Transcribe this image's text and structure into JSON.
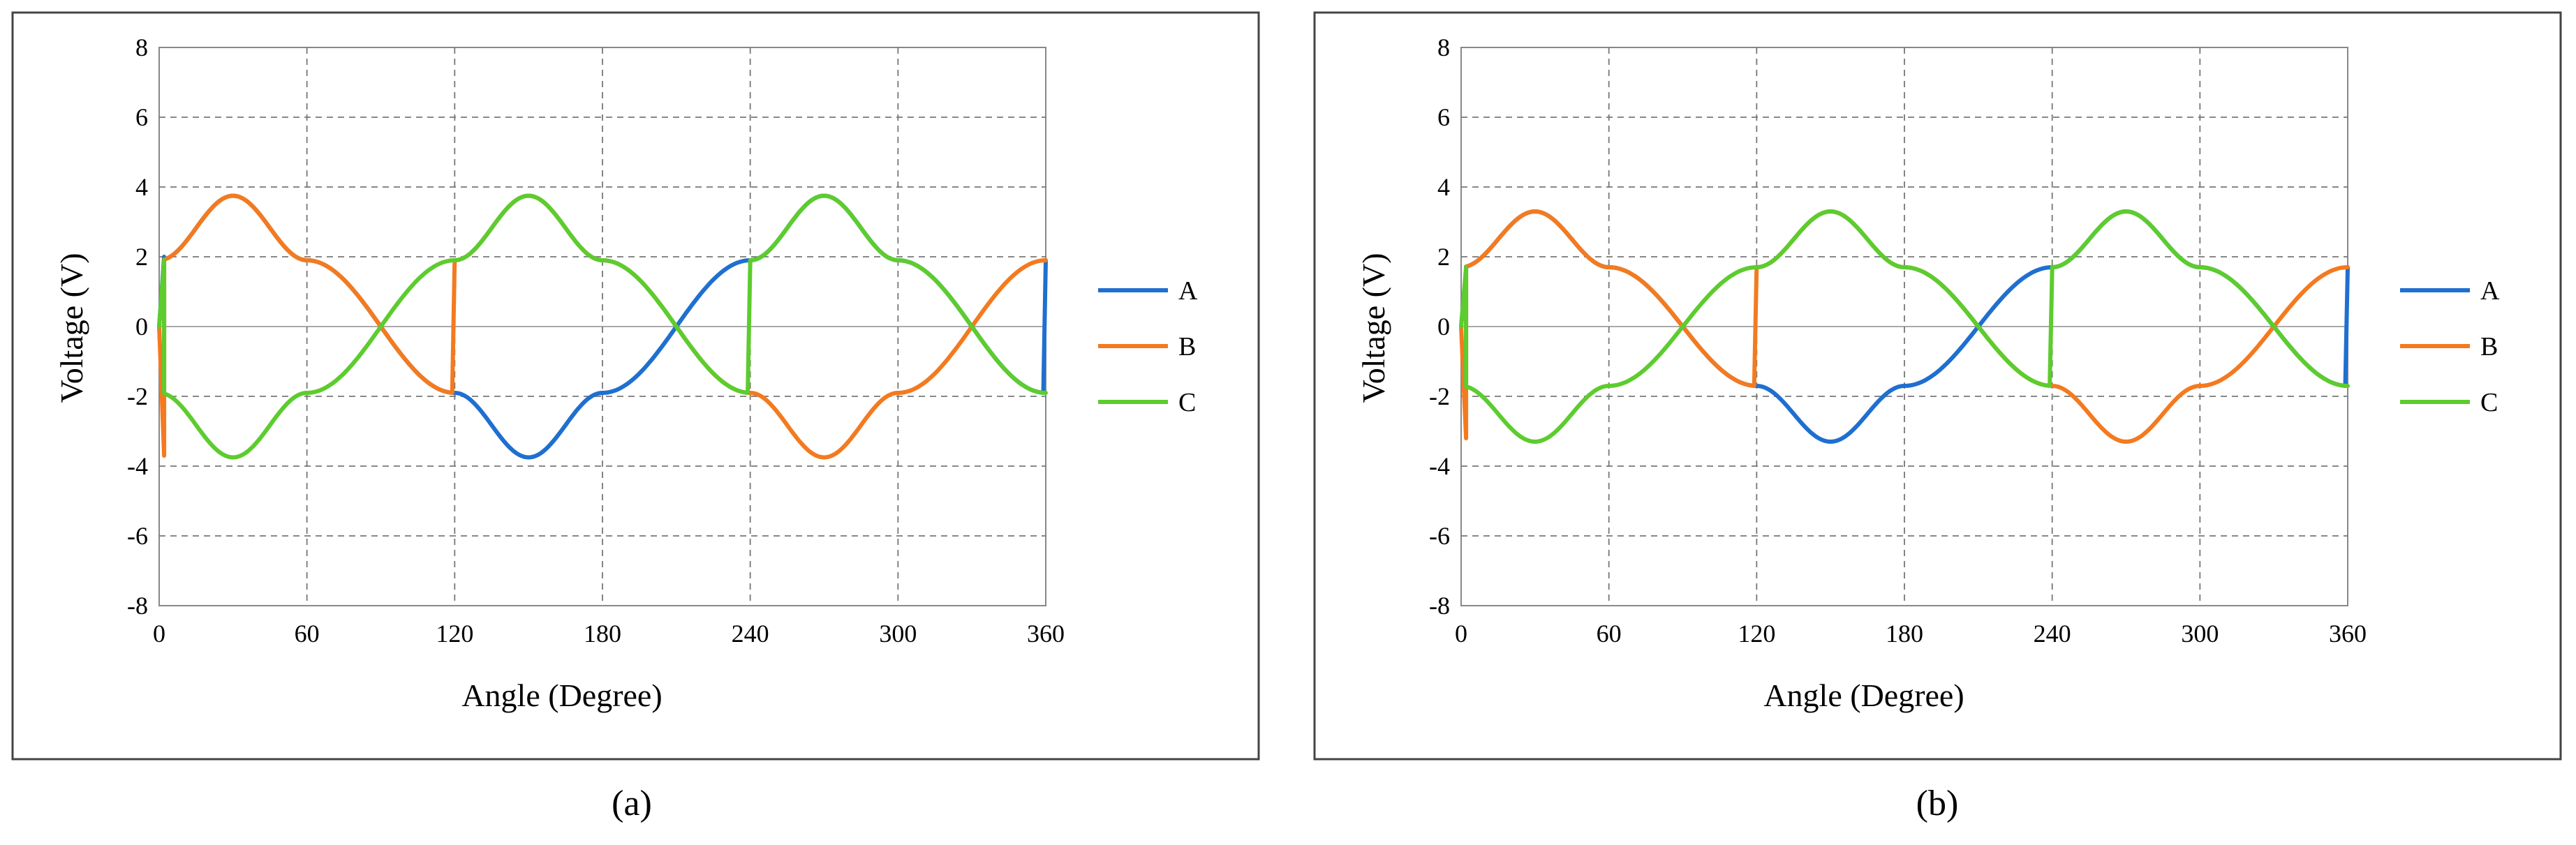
{
  "chart_data": [
    {
      "type": "line",
      "panel": "(a)",
      "xlabel": "Angle (Degree)",
      "ylabel": "Voltage (V)",
      "xlim": [
        0,
        360
      ],
      "ylim": [
        -8,
        8
      ],
      "xticks": [
        0,
        60,
        120,
        180,
        240,
        300,
        360
      ],
      "yticks": [
        -8,
        -6,
        -4,
        -2,
        0,
        2,
        4,
        6,
        8
      ],
      "grid": true,
      "legend": "right",
      "series": [
        {
          "name": "A",
          "color": "#1f6fd0",
          "peak": 3.75,
          "trough": -3.75,
          "plateau": 1.9,
          "shift": 0,
          "startup": {
            "from": 0,
            "to": 2,
            "x_end": 2
          }
        },
        {
          "name": "B",
          "color": "#f47a1f",
          "peak": 3.75,
          "trough": -3.75,
          "plateau": 1.9,
          "shift": 120,
          "startup": {
            "from": 0,
            "to": -3.7,
            "x_end": 2
          }
        },
        {
          "name": "C",
          "color": "#5ccc2e",
          "peak": 3.75,
          "trough": -3.75,
          "plateau": 1.9,
          "shift": 240,
          "startup": {
            "from": 0,
            "to": 1.9,
            "x_end": 2
          }
        }
      ]
    },
    {
      "type": "line",
      "panel": "(b)",
      "xlabel": "Angle (Degree)",
      "ylabel": "Voltage (V)",
      "xlim": [
        0,
        360
      ],
      "ylim": [
        -8,
        8
      ],
      "xticks": [
        0,
        60,
        120,
        180,
        240,
        300,
        360
      ],
      "yticks": [
        -8,
        -6,
        -4,
        -2,
        0,
        2,
        4,
        6,
        8
      ],
      "grid": true,
      "legend": "right",
      "series": [
        {
          "name": "A",
          "color": "#1f6fd0",
          "peak": 3.3,
          "trough": -3.3,
          "plateau": 1.7,
          "shift": 0,
          "startup": {
            "from": 0,
            "to": 1.6,
            "x_end": 2
          }
        },
        {
          "name": "B",
          "color": "#f47a1f",
          "peak": 3.3,
          "trough": -3.3,
          "plateau": 1.7,
          "shift": 120,
          "startup": {
            "from": 0,
            "to": -3.2,
            "x_end": 2
          }
        },
        {
          "name": "C",
          "color": "#5ccc2e",
          "peak": 3.3,
          "trough": -3.3,
          "plateau": 1.7,
          "shift": 240,
          "startup": {
            "from": 0,
            "to": 1.7,
            "x_end": 2
          }
        }
      ]
    }
  ]
}
